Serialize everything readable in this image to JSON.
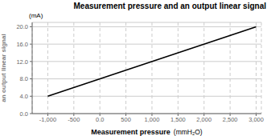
{
  "chart_data": {
    "type": "line",
    "title": "Measurement pressure and an output linear signal",
    "xlabel": "Measurement pressure",
    "xlabel_unit": "(mmH₂O)",
    "ylabel": "an output linear signal",
    "ylabel_unit": "(mA)",
    "x": [
      -1000,
      3000
    ],
    "values": [
      4.0,
      20.0
    ],
    "color": "#000000",
    "xlim": [
      -1300,
      3100
    ],
    "ylim": [
      0.0,
      21.0
    ],
    "xticks": [
      {
        "value": -1000,
        "label": "-1,000"
      },
      -500,
      {
        "value": 0,
        "label": "0.0"
      },
      500,
      {
        "value": 1000,
        "label": "1,000"
      },
      {
        "value": 1500,
        "label": "1,500"
      },
      {
        "value": 2000,
        "label": "2,000"
      },
      {
        "value": 2500,
        "label": "2,500"
      },
      {
        "value": 3000,
        "label": "3,000"
      }
    ],
    "yticks": [
      {
        "value": 0,
        "label": "0.0"
      },
      {
        "value": 4,
        "label": "4.0"
      },
      {
        "value": 8,
        "label": "8.0"
      },
      {
        "value": 12,
        "label": "12.0"
      },
      {
        "value": 16,
        "label": "16.0"
      },
      {
        "value": 20,
        "label": "20.0"
      }
    ],
    "grid": true
  }
}
